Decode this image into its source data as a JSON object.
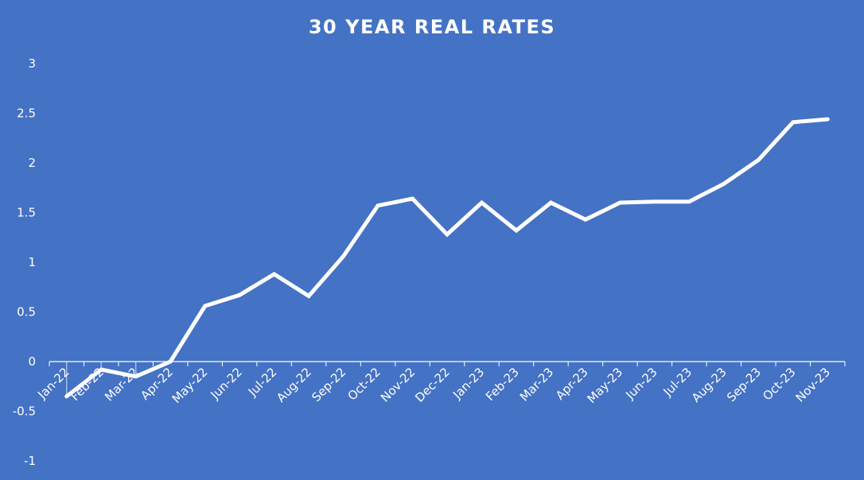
{
  "chart_data": {
    "type": "line",
    "title": "30 YEAR REAL RATES",
    "xlabel": "",
    "ylabel": "",
    "categories": [
      "Jan-22",
      "Feb-22",
      "Mar-22",
      "Apr-22",
      "May-22",
      "Jun-22",
      "Jul-22",
      "Aug-22",
      "Sep-22",
      "Oct-22",
      "Nov-22",
      "Dec-22",
      "Jan-23",
      "Feb-23",
      "Mar-23",
      "Apr-23",
      "May-23",
      "Jun-23",
      "Jul-23",
      "Aug-23",
      "Sep-23",
      "Oct-23",
      "Nov-23"
    ],
    "values": [
      -0.35,
      -0.08,
      -0.15,
      0.0,
      0.56,
      0.67,
      0.88,
      0.66,
      1.06,
      1.57,
      1.64,
      1.28,
      1.6,
      1.32,
      1.6,
      1.43,
      1.6,
      1.61,
      1.61,
      1.79,
      2.03,
      2.41,
      2.44
    ],
    "ylim": [
      -1,
      3
    ],
    "yticks": [
      "3",
      "2.5",
      "2",
      "1.5",
      "1",
      "0.5",
      "0",
      "-0.5",
      "-1"
    ],
    "grid": false,
    "colors": {
      "background": "#4472C4",
      "line": "#FFFFFF"
    }
  }
}
